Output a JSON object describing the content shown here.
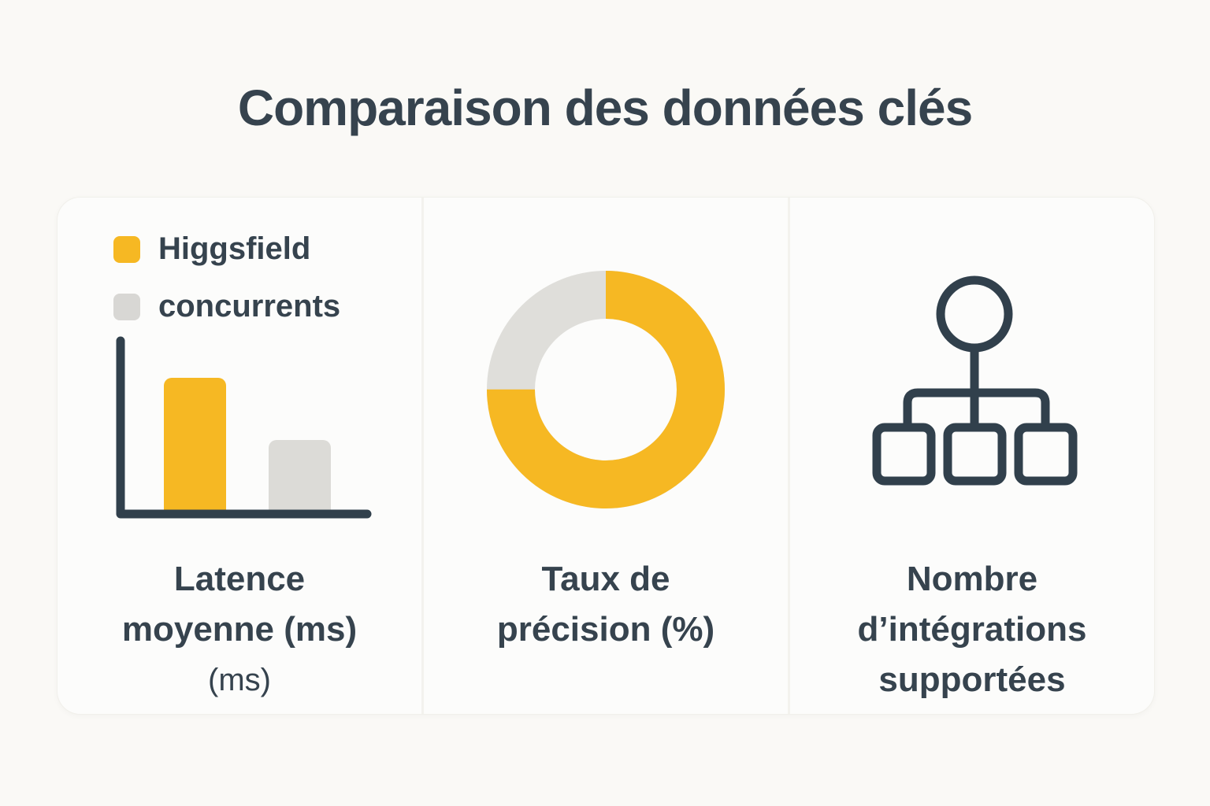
{
  "title": "Comparaison des données clés",
  "colors": {
    "accent_yellow": "#F6B823",
    "neutral_gray": "#DCDBD7",
    "donut_gray": "#DFDEDA",
    "ink": "#31404C",
    "page_bg": "#FAF9F6",
    "card_bg": "#FCFCFB",
    "divider": "#F3F2EE"
  },
  "legend": {
    "items": [
      {
        "label": "Higgsfield",
        "color": "#F6B823"
      },
      {
        "label": "concurrents",
        "color": "#D8D7D4"
      }
    ]
  },
  "panels": [
    {
      "icon": "bar-chart-icon",
      "label_lines": [
        "Latence",
        "moyenne (ms)"
      ],
      "sub_label": "(ms)"
    },
    {
      "icon": "donut-chart-icon",
      "label_lines": [
        "Taux de",
        "précision (%)"
      ]
    },
    {
      "icon": "org-chart-icon",
      "label_lines": [
        "Nombre",
        "d’intégrations",
        "supportées"
      ]
    }
  ],
  "chart_data": [
    {
      "type": "bar",
      "title": "Latence moyenne (ms)",
      "categories": [
        "Higgsfield",
        "concurrents"
      ],
      "values": [
        171,
        92
      ],
      "values_note": "no numeric labels shown in image; heights are relative (yellow ≈ 1.85× gray)",
      "colors": [
        "#F6B823",
        "#DCDBD7"
      ],
      "xlabel": "",
      "ylabel": "ms",
      "grid": false,
      "axes_ticks": false,
      "legend_position": "top-left"
    },
    {
      "type": "pie",
      "subtype": "donut",
      "title": "Taux de précision (%)",
      "categories": [
        "Higgsfield",
        "concurrents"
      ],
      "values": [
        75,
        25
      ],
      "colors": [
        "#F6B823",
        "#DFDEDA"
      ],
      "start_angle_deg": 0,
      "direction": "clockwise",
      "inner_radius_ratio": 0.6
    }
  ]
}
